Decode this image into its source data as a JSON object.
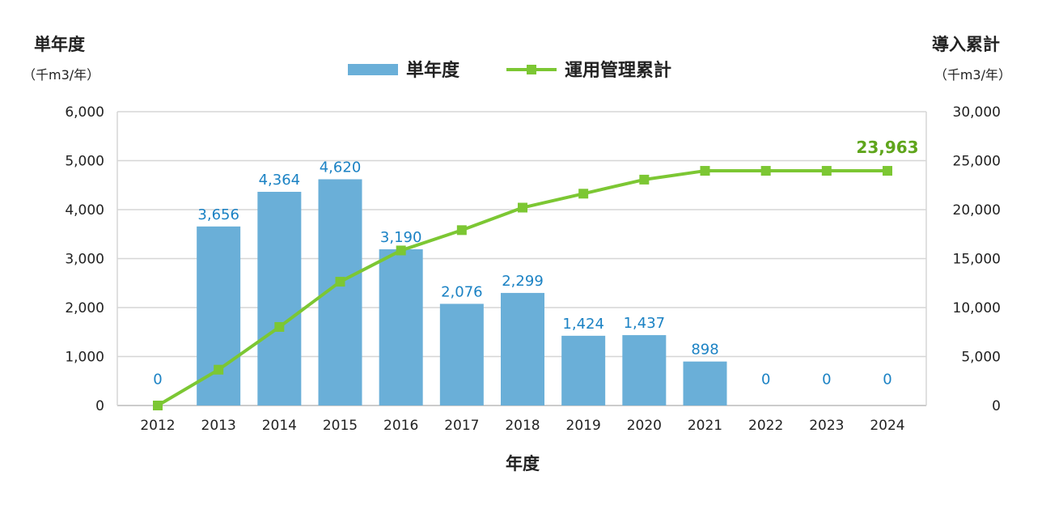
{
  "chart_data": {
    "type": "bar+line",
    "xlabel": "年度",
    "ylabel_left": "単年度",
    "ylabel_left_unit": "（千m3/年）",
    "ylabel_right": "導入累計",
    "ylabel_right_unit": "（千m3/年）",
    "categories": [
      "2012",
      "2013",
      "2014",
      "2015",
      "2016",
      "2017",
      "2018",
      "2019",
      "2020",
      "2021",
      "2022",
      "2023",
      "2024"
    ],
    "ylim_left": [
      0,
      6000
    ],
    "ylim_right": [
      0,
      30000
    ],
    "yticks_left": [
      "0",
      "1,000",
      "2,000",
      "3,000",
      "4,000",
      "5,000",
      "6,000"
    ],
    "yticks_right": [
      "0",
      "5,000",
      "10,000",
      "15,000",
      "20,000",
      "25,000",
      "30,000"
    ],
    "grid": true,
    "legend_position": "top-center",
    "series": [
      {
        "name": "単年度",
        "type": "bar",
        "axis": "left",
        "color": "#6aafd8",
        "label_color": "#1b82c4",
        "values": [
          0,
          3656,
          4364,
          4620,
          3190,
          2076,
          2299,
          1424,
          1437,
          898,
          0,
          0,
          0
        ],
        "labels": [
          "0",
          "3,656",
          "4,364",
          "4,620",
          "3,190",
          "2,076",
          "2,299",
          "1,424",
          "1,437",
          "898",
          "0",
          "0",
          "0"
        ]
      },
      {
        "name": "運用管理累計",
        "type": "line",
        "axis": "right",
        "color": "#7cc733",
        "label_color": "#5fa51c",
        "values": [
          0,
          3656,
          8020,
          12640,
          15830,
          17906,
          20205,
          21629,
          23066,
          23963,
          23963,
          23963,
          23963
        ],
        "end_label": "23,963"
      }
    ]
  }
}
